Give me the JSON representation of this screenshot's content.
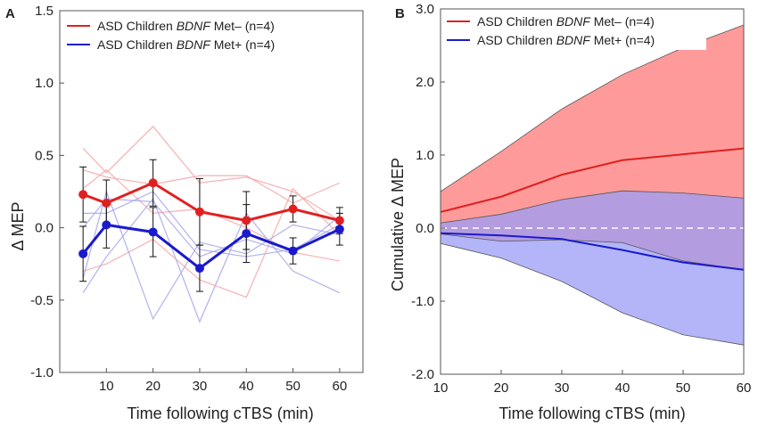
{
  "chart_data": [
    {
      "panel": "A",
      "type": "line",
      "xlabel": "Time following cTBS (min)",
      "ylabel": "Δ MEP",
      "xlim": [
        0,
        65
      ],
      "ylim": [
        -1.0,
        1.5
      ],
      "xticks": [
        10,
        20,
        30,
        40,
        50,
        60
      ],
      "yticks": [
        -1.0,
        -0.5,
        0.0,
        0.5,
        1.0,
        1.5
      ],
      "ytick_labels": [
        "-1.0",
        "-0.5",
        "0.0",
        "0.5",
        "1.0",
        "1.5"
      ],
      "x": [
        5,
        10,
        20,
        30,
        40,
        50,
        60
      ],
      "legend": {
        "position": "top-left",
        "entries": [
          {
            "prefix": "ASD Children ",
            "italic": "BDNF",
            "suffix": " Met– (n=4)",
            "color": "#e02020"
          },
          {
            "prefix": "ASD Children ",
            "italic": "BDNF",
            "suffix": " Met+ (n=4)",
            "color": "#1a1acc"
          }
        ]
      },
      "series": [
        {
          "name": "ASD Children BDNF Met– (n=4)",
          "color": "#e02020",
          "values": [
            0.23,
            0.17,
            0.31,
            0.11,
            0.05,
            0.13,
            0.05
          ],
          "error": [
            0.19,
            0.16,
            0.16,
            0.23,
            0.2,
            0.09,
            0.09
          ]
        },
        {
          "name": "ASD Children BDNF Met+ (n=4)",
          "color": "#1a1acc",
          "values": [
            -0.18,
            0.02,
            -0.03,
            -0.28,
            -0.04,
            -0.16,
            -0.01
          ],
          "error": [
            0.19,
            0.16,
            0.17,
            0.16,
            0.2,
            0.09,
            0.11
          ]
        }
      ],
      "individuals": [
        {
          "group": "Met–",
          "color": "#f5a8a8",
          "values": [
            0.55,
            0.38,
            0.7,
            0.31,
            0.35,
            0.25,
            0.05
          ]
        },
        {
          "group": "Met–",
          "color": "#f5a8a8",
          "values": [
            0.4,
            0.35,
            0.3,
            0.36,
            0.36,
            0.17,
            0.31
          ]
        },
        {
          "group": "Met–",
          "color": "#f5a8a8",
          "values": [
            -0.3,
            -0.25,
            -0.08,
            -0.36,
            -0.48,
            0.27,
            -0.05
          ]
        },
        {
          "group": "Met–",
          "color": "#f5a8a8",
          "values": [
            0.27,
            0.4,
            0.1,
            0.13,
            0.0,
            -0.17,
            -0.23
          ]
        },
        {
          "group": "Met+",
          "color": "#a8a8ee",
          "values": [
            -0.45,
            -0.2,
            0.2,
            -0.65,
            0.1,
            -0.3,
            -0.45
          ]
        },
        {
          "group": "Met+",
          "color": "#a8a8ee",
          "values": [
            0.0,
            0.2,
            0.18,
            -0.2,
            -0.08,
            -0.18,
            0.08
          ]
        },
        {
          "group": "Met+",
          "color": "#a8a8ee",
          "values": [
            -0.35,
            0.25,
            -0.63,
            -0.1,
            -0.18,
            0.02,
            -0.05
          ]
        },
        {
          "group": "Met+",
          "color": "#a8a8ee",
          "values": [
            0.1,
            0.1,
            0.25,
            -0.15,
            -0.2,
            -0.15,
            0.02
          ]
        }
      ]
    },
    {
      "panel": "B",
      "type": "area",
      "xlabel": "Time following cTBS (min)",
      "ylabel": "Cumulative Δ MEP",
      "xlim": [
        10,
        60
      ],
      "ylim": [
        -2.0,
        3.0
      ],
      "xticks": [
        10,
        20,
        30,
        40,
        50,
        60
      ],
      "yticks": [
        -2.0,
        -1.0,
        0.0,
        1.0,
        2.0,
        3.0
      ],
      "ytick_labels": [
        "-2.0",
        "-1.0",
        "0.0",
        "1.0",
        "2.0",
        "3.0"
      ],
      "zero_line": "dashed",
      "x": [
        10,
        20,
        30,
        40,
        50,
        60
      ],
      "legend": {
        "position": "top-left",
        "entries": [
          {
            "prefix": "ASD Children ",
            "italic": "BDNF",
            "suffix": " Met– (n=4)",
            "color": "#e02020"
          },
          {
            "prefix": "ASD Children ",
            "italic": "BDNF",
            "suffix": " Met+ (n=4)",
            "color": "#1a1acc"
          }
        ]
      },
      "series": [
        {
          "name": "ASD Children BDNF Met– (n=4)",
          "color": "#e02020",
          "fill": "#ff9a9a",
          "mean": [
            0.22,
            0.43,
            0.73,
            0.93,
            1.01,
            1.09
          ],
          "upper": [
            0.5,
            1.05,
            1.63,
            2.1,
            2.47,
            2.78
          ],
          "lower": [
            -0.08,
            -0.18,
            -0.16,
            -0.2,
            -0.45,
            -0.57
          ]
        },
        {
          "name": "ASD Children BDNF Met+ (n=4)",
          "color": "#1a1acc",
          "fill": "#9a9cf5",
          "mean": [
            -0.07,
            -0.1,
            -0.15,
            -0.3,
            -0.47,
            -0.57
          ],
          "upper": [
            0.07,
            0.19,
            0.39,
            0.51,
            0.48,
            0.41
          ],
          "lower": [
            -0.21,
            -0.41,
            -0.73,
            -1.16,
            -1.46,
            -1.6
          ]
        }
      ]
    }
  ]
}
